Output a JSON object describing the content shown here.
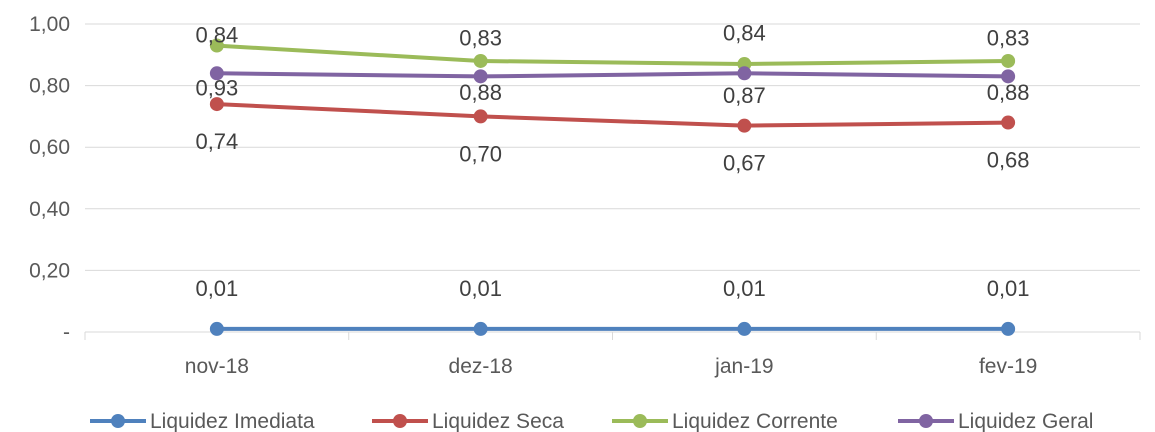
{
  "chart_data": {
    "type": "line",
    "title": "",
    "xlabel": "",
    "ylabel": "",
    "categories": [
      "nov-18",
      "dez-18",
      "jan-19",
      "fev-19"
    ],
    "y_ticks": [
      {
        "value": 0,
        "label": "-"
      },
      {
        "value": 0.2,
        "label": "0,20"
      },
      {
        "value": 0.4,
        "label": "0,40"
      },
      {
        "value": 0.6,
        "label": "0,60"
      },
      {
        "value": 0.8,
        "label": "0,80"
      },
      {
        "value": 1.0,
        "label": "1,00"
      }
    ],
    "ylim": [
      0,
      1.0
    ],
    "grid": true,
    "legend_position": "bottom",
    "series": [
      {
        "name": "Liquidez Imediata",
        "color": "#4f81bd",
        "values": [
          0.01,
          0.01,
          0.01,
          0.01
        ],
        "data_labels": [
          "0,01",
          "0,01",
          "0,01",
          "0,01"
        ]
      },
      {
        "name": "Liquidez Seca",
        "color": "#c0504d",
        "values": [
          0.74,
          0.7,
          0.67,
          0.68
        ],
        "data_labels": [
          "0,74",
          "0,70",
          "0,67",
          "0,68"
        ]
      },
      {
        "name": "Liquidez Corrente",
        "color": "#9bbb59",
        "values": [
          0.93,
          0.88,
          0.87,
          0.88
        ],
        "data_labels": [
          "0,93",
          "0,88",
          "0,87",
          "0,88"
        ]
      },
      {
        "name": "Liquidez Geral",
        "color": "#8064a2",
        "values": [
          0.84,
          0.83,
          0.84,
          0.83
        ],
        "data_labels": [
          "0,84",
          "0,83",
          "0,84",
          "0,83"
        ]
      }
    ]
  }
}
